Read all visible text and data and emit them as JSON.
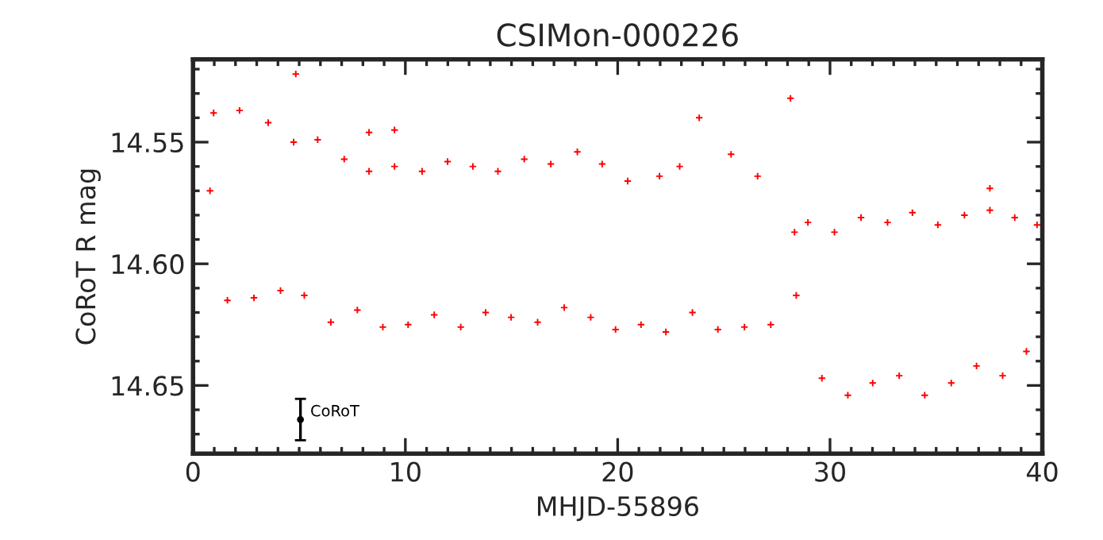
{
  "chart_data": {
    "type": "scatter",
    "title": "CSIMon-000226",
    "xlabel": "MHJD-55896",
    "ylabel": "CoRoT R mag",
    "marker": "cross",
    "grid": false,
    "legend": false,
    "xlim": [
      0,
      40
    ],
    "ylim": [
      14.678,
      14.516
    ],
    "xticks": [
      0,
      {
        "value": 1,
        "label": null
      },
      {
        "value": 2,
        "label": null
      },
      {
        "value": 3,
        "label": null
      },
      {
        "value": 4,
        "label": null
      },
      {
        "value": 5,
        "label": null
      },
      {
        "value": 6,
        "label": null
      },
      {
        "value": 7,
        "label": null
      },
      {
        "value": 8,
        "label": null
      },
      {
        "value": 9,
        "label": null
      },
      10,
      {
        "value": 11,
        "label": null
      },
      {
        "value": 12,
        "label": null
      },
      {
        "value": 13,
        "label": null
      },
      {
        "value": 14,
        "label": null
      },
      {
        "value": 15,
        "label": null
      },
      {
        "value": 16,
        "label": null
      },
      {
        "value": 17,
        "label": null
      },
      {
        "value": 18,
        "label": null
      },
      {
        "value": 19,
        "label": null
      },
      20,
      {
        "value": 21,
        "label": null
      },
      {
        "value": 22,
        "label": null
      },
      {
        "value": 23,
        "label": null
      },
      {
        "value": 24,
        "label": null
      },
      {
        "value": 25,
        "label": null
      },
      {
        "value": 26,
        "label": null
      },
      {
        "value": 27,
        "label": null
      },
      {
        "value": 28,
        "label": null
      },
      {
        "value": 29,
        "label": null
      },
      30,
      {
        "value": 31,
        "label": null
      },
      {
        "value": 32,
        "label": null
      },
      {
        "value": 33,
        "label": null
      },
      {
        "value": 34,
        "label": null
      },
      {
        "value": 35,
        "label": null
      },
      {
        "value": 36,
        "label": null
      },
      {
        "value": 37,
        "label": null
      },
      {
        "value": 38,
        "label": null
      },
      {
        "value": 39,
        "label": null
      },
      40
    ],
    "yticks": [
      {
        "value": 14.52,
        "label": null
      },
      {
        "value": 14.53,
        "label": null
      },
      {
        "value": 14.54,
        "label": null
      },
      14.55,
      {
        "value": 14.56,
        "label": null
      },
      {
        "value": 14.57,
        "label": null
      },
      {
        "value": 14.58,
        "label": null
      },
      {
        "value": 14.59,
        "label": null
      },
      {
        "value": 14.6,
        "label": "14.60"
      },
      {
        "value": 14.61,
        "label": null
      },
      {
        "value": 14.62,
        "label": null
      },
      {
        "value": 14.63,
        "label": null
      },
      {
        "value": 14.64,
        "label": null
      },
      14.65,
      {
        "value": 14.66,
        "label": null
      },
      {
        "value": 14.67,
        "label": null
      }
    ],
    "series": [
      {
        "color": "#ff0000",
        "x": [
          0.8,
          0.97,
          1.62,
          2.19,
          2.87,
          3.54,
          4.12,
          4.74,
          4.84,
          5.24,
          5.87,
          6.49,
          7.12,
          7.74,
          8.29,
          8.29,
          8.94,
          9.49,
          9.49,
          10.13,
          10.79,
          11.36,
          11.99,
          12.61,
          13.18,
          13.78,
          14.36,
          14.98,
          15.6,
          16.23,
          16.85,
          17.48,
          18.1,
          18.73,
          19.27,
          19.9,
          20.47,
          21.1,
          21.97,
          22.27,
          22.92,
          23.52,
          23.84,
          24.72,
          25.34,
          25.97,
          26.59,
          27.21,
          28.14,
          28.33,
          28.41,
          28.96,
          29.62,
          30.21,
          30.84,
          31.46,
          32.01,
          32.71,
          33.26,
          33.88,
          34.46,
          35.08,
          35.71,
          36.33,
          36.9,
          37.53,
          37.53,
          38.13,
          38.7,
          39.25,
          39.75
        ],
        "values": [
          14.57,
          14.538,
          14.615,
          14.537,
          14.614,
          14.542,
          14.611,
          14.55,
          14.522,
          14.613,
          14.549,
          14.624,
          14.557,
          14.619,
          14.562,
          14.546,
          14.626,
          14.56,
          14.545,
          14.625,
          14.562,
          14.621,
          14.558,
          14.626,
          14.56,
          14.62,
          14.562,
          14.622,
          14.557,
          14.624,
          14.559,
          14.618,
          14.554,
          14.622,
          14.559,
          14.627,
          14.566,
          14.625,
          14.564,
          14.628,
          14.56,
          14.62,
          14.54,
          14.627,
          14.555,
          14.626,
          14.564,
          14.625,
          14.532,
          14.587,
          14.613,
          14.583,
          14.647,
          14.587,
          14.654,
          14.581,
          14.649,
          14.583,
          14.646,
          14.579,
          14.654,
          14.584,
          14.649,
          14.58,
          14.642,
          14.578,
          14.569,
          14.646,
          14.581,
          14.636,
          14.584
        ]
      },
      {
        "name": "CoRoT",
        "color": "#000000",
        "marker": "circle",
        "x": [
          5.06
        ],
        "values": [
          14.664
        ],
        "errors": [
          0.0085
        ]
      }
    ]
  }
}
